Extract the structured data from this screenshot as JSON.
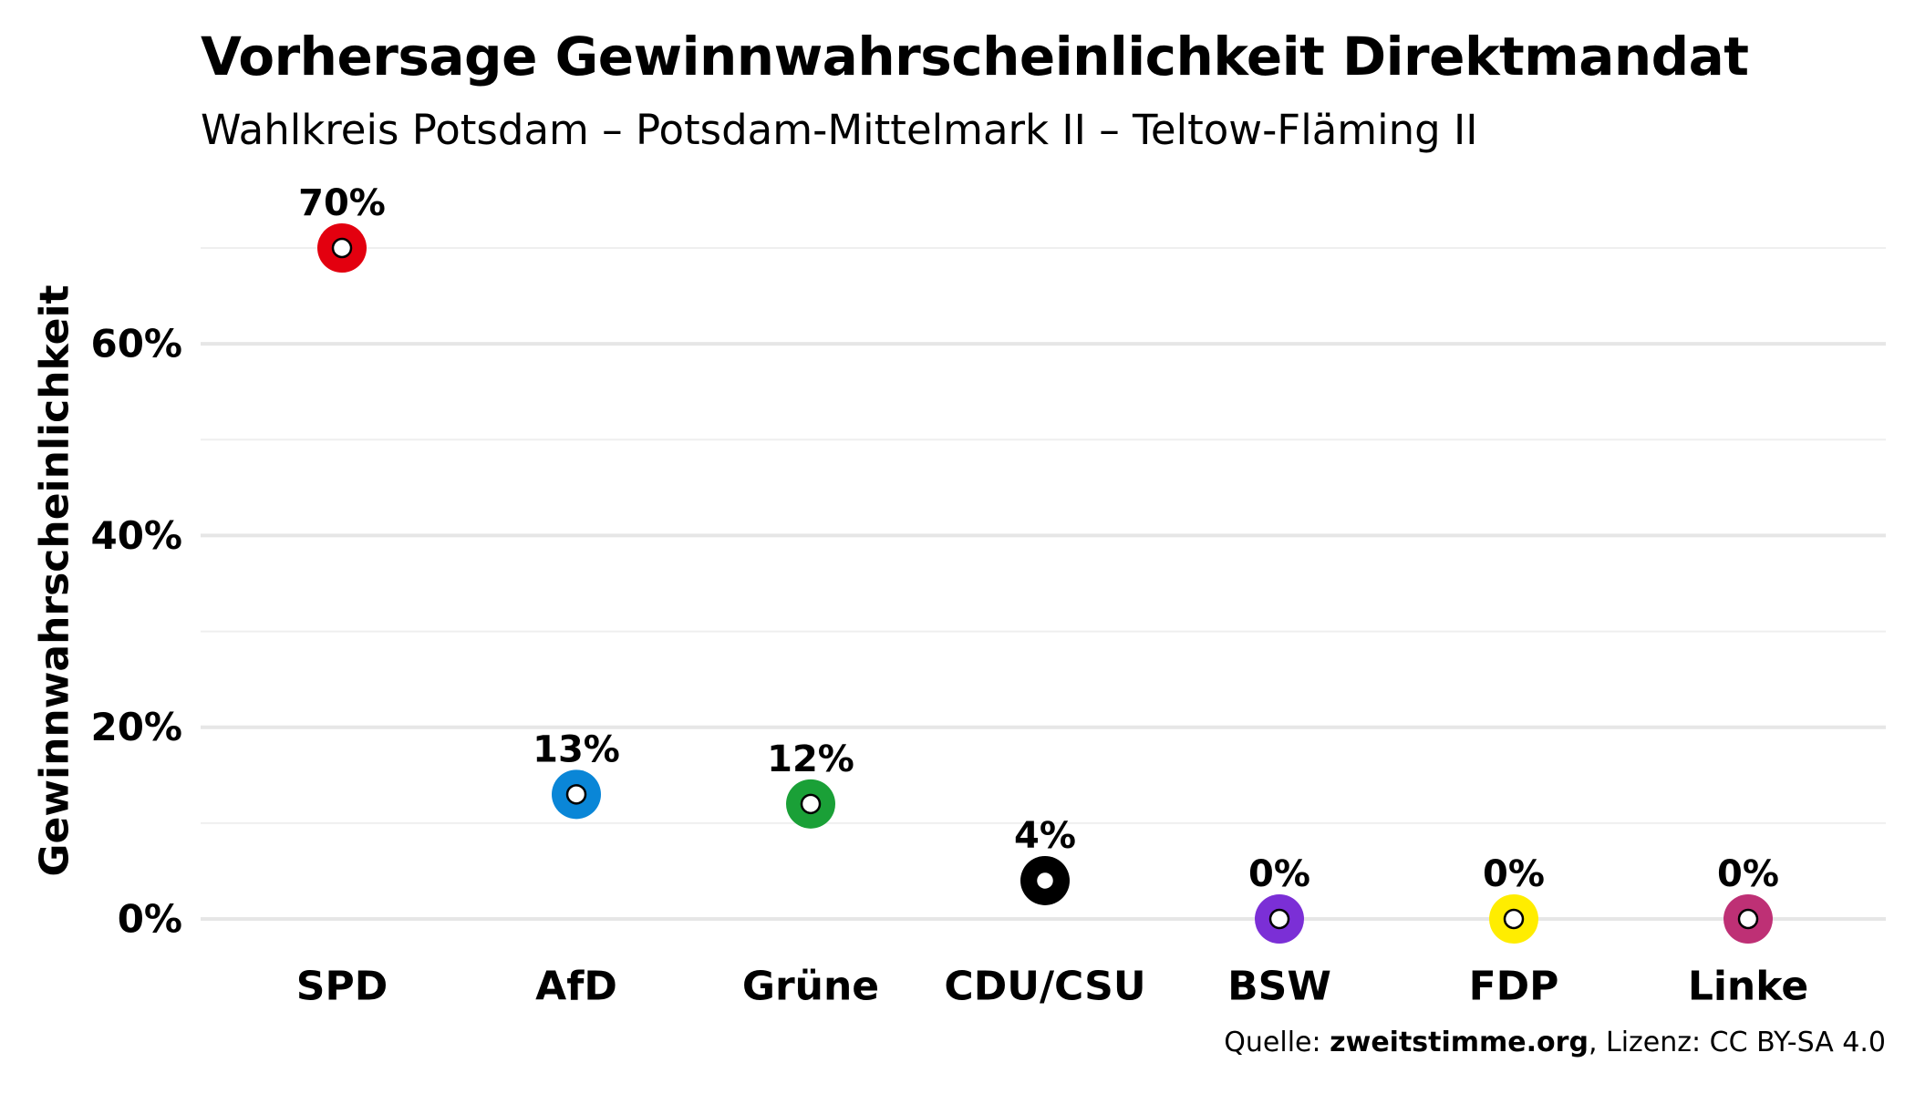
{
  "chart_data": {
    "type": "scatter",
    "title": "Vorhersage Gewinnwahrscheinlichkeit Direktmandat",
    "subtitle": "Wahlkreis Potsdam – Potsdam-Mittelmark II – Teltow-Fläming II",
    "xlabel": "",
    "ylabel": "Gewinnwahrscheinlichkeit",
    "categories": [
      "SPD",
      "AfD",
      "Grüne",
      "CDU/CSU",
      "BSW",
      "FDP",
      "Linke"
    ],
    "values": [
      70,
      13,
      12,
      4,
      0,
      0,
      0
    ],
    "data_labels": [
      "70%",
      "13%",
      "12%",
      "4%",
      "0%",
      "0%",
      "0%"
    ],
    "colors": [
      "#e3000f",
      "#0a86d7",
      "#1aa037",
      "#000000",
      "#7b2fd6",
      "#ffed00",
      "#be3075"
    ],
    "ylim": [
      0,
      70
    ],
    "yticks": [
      0,
      20,
      40,
      60
    ],
    "ytick_labels": [
      "0%",
      "20%",
      "40%",
      "60%"
    ],
    "grid": true,
    "legend": "none"
  },
  "caption": {
    "prefix": "Quelle: ",
    "source": "zweitstimme.org",
    "suffix": ", Lizenz: CC BY-SA 4.0"
  }
}
